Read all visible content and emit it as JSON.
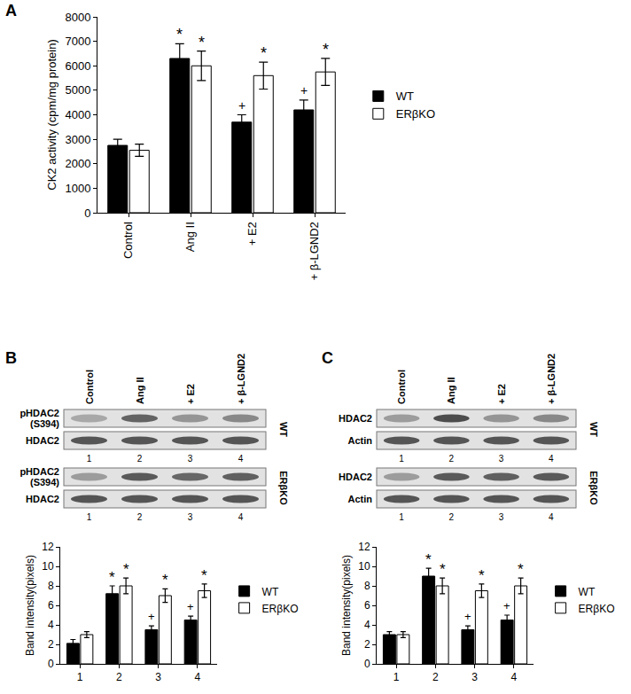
{
  "chart_data": [
    {
      "panel": "A",
      "type": "bar",
      "categories": [
        "Control",
        "Ang II",
        "+ E2",
        "+ β-LGND2"
      ],
      "y_label": "CK2 activity (cpm/mg protein)",
      "ylim": [
        0,
        8000
      ],
      "yticks": [
        0,
        1000,
        2000,
        3000,
        4000,
        5000,
        6000,
        7000,
        8000
      ],
      "legend": "right",
      "series": [
        {
          "name": "WT",
          "color": "#000000",
          "values": [
            2750,
            6300,
            3700,
            4200
          ],
          "errors": [
            250,
            600,
            300,
            400
          ],
          "marks": [
            null,
            "*",
            "+",
            "+"
          ]
        },
        {
          "name": "ERβKO",
          "color": "#ffffff",
          "values": [
            2550,
            6000,
            5600,
            5750
          ],
          "errors": [
            250,
            600,
            550,
            550
          ],
          "marks": [
            null,
            "*",
            "*",
            "*"
          ]
        }
      ]
    },
    {
      "panel": "B",
      "type": "bar",
      "lanes": [
        "Control",
        "Ang II",
        "+ E2",
        "+ β-LGND2"
      ],
      "blots": [
        {
          "group": "WT",
          "rows": [
            "pHDAC2 (S394)",
            "HDAC2"
          ]
        },
        {
          "group": "ERβKO",
          "rows": [
            "pHDAC2 (S394)",
            "HDAC2"
          ]
        }
      ],
      "categories": [
        "1",
        "2",
        "3",
        "4"
      ],
      "y_label": "Band intensity(pixels)",
      "ylim": [
        0,
        12
      ],
      "yticks": [
        0,
        2,
        4,
        6,
        8,
        10,
        12
      ],
      "legend": "right",
      "series": [
        {
          "name": "WT",
          "color": "#000000",
          "values": [
            2.1,
            7.2,
            3.5,
            4.5
          ],
          "errors": [
            0.4,
            0.8,
            0.4,
            0.4
          ],
          "marks": [
            null,
            "*",
            "+",
            "+"
          ]
        },
        {
          "name": "ERβKO",
          "color": "#ffffff",
          "values": [
            3.0,
            8.0,
            7.0,
            7.5
          ],
          "errors": [
            0.3,
            0.8,
            0.7,
            0.7
          ],
          "marks": [
            null,
            "*",
            "*",
            "*"
          ]
        }
      ]
    },
    {
      "panel": "C",
      "type": "bar",
      "lanes": [
        "Control",
        "Ang II",
        "+ E2",
        "+ β-LGND2"
      ],
      "blots": [
        {
          "group": "WT",
          "rows": [
            "HDAC2",
            "Actin"
          ]
        },
        {
          "group": "ERβKO",
          "rows": [
            "HDAC2",
            "Actin"
          ]
        }
      ],
      "categories": [
        "1",
        "2",
        "3",
        "4"
      ],
      "y_label": "Band intensity(pixels)",
      "ylim": [
        0,
        12
      ],
      "yticks": [
        0,
        2,
        4,
        6,
        8,
        10,
        12
      ],
      "legend": "right",
      "series": [
        {
          "name": "WT",
          "color": "#000000",
          "values": [
            3.0,
            9.0,
            3.5,
            4.5
          ],
          "errors": [
            0.3,
            0.8,
            0.4,
            0.5
          ],
          "marks": [
            null,
            "*",
            "+",
            "+"
          ]
        },
        {
          "name": "ERβKO",
          "color": "#ffffff",
          "values": [
            3.0,
            8.0,
            7.5,
            8.0
          ],
          "errors": [
            0.3,
            0.8,
            0.7,
            0.8
          ],
          "marks": [
            null,
            "*",
            "*",
            "*"
          ]
        }
      ]
    }
  ]
}
